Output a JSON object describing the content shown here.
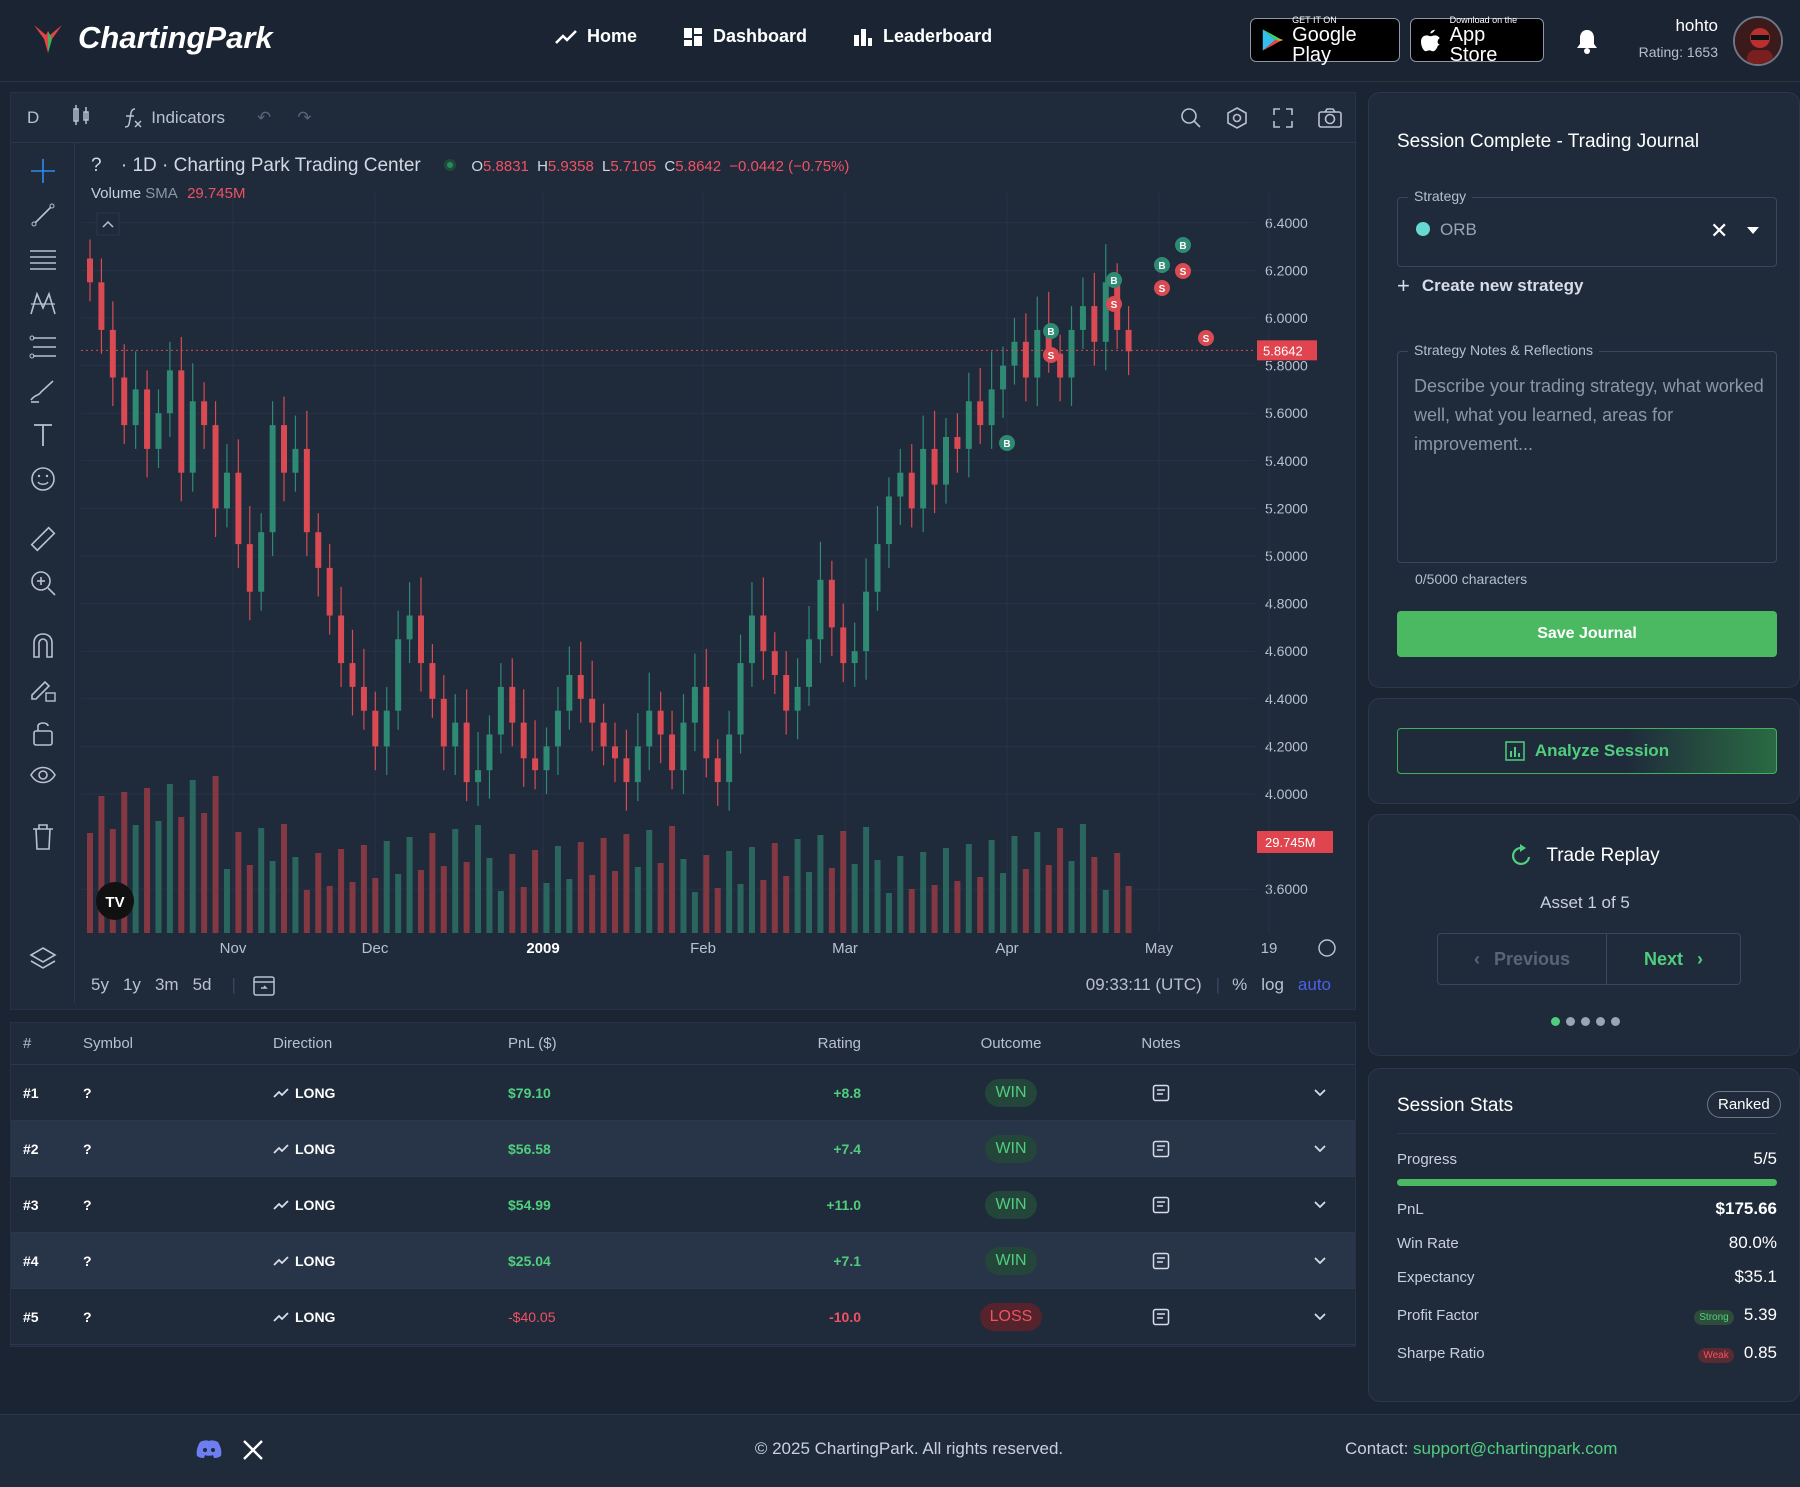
{
  "header": {
    "brand": "ChartingPark",
    "nav": [
      {
        "label": "Home",
        "icon": "trend-icon"
      },
      {
        "label": "Dashboard",
        "icon": "dashboard-icon"
      },
      {
        "label": "Leaderboard",
        "icon": "bar-chart-icon"
      }
    ],
    "google_play": {
      "small": "GET IT ON",
      "big": "Google Play"
    },
    "app_store": {
      "small": "Download on the",
      "big": "App Store"
    },
    "user": {
      "name": "hohto",
      "rating": "Rating: 1653"
    }
  },
  "chart_toolbar": {
    "interval": "D",
    "indicators_label": "Indicators"
  },
  "chart_legend": {
    "symbol": "?",
    "title": "· 1D · Charting Park Trading Center",
    "open_label": "O",
    "open": "5.8831",
    "high_label": "H",
    "high": "5.9358",
    "low_label": "L",
    "low": "5.7105",
    "close_label": "C",
    "close": "5.8642",
    "change": "−0.0442 (−0.75%)",
    "volume_label": "Volume",
    "volume_sma_label": "SMA",
    "volume_value": "29.745M"
  },
  "chart_data": {
    "type": "candlestick",
    "y_axis_ticks": [
      "6.4000",
      "6.2000",
      "6.0000",
      "5.8000",
      "5.6000",
      "5.4000",
      "5.2000",
      "5.0000",
      "4.8000",
      "4.6000",
      "4.4000",
      "4.2000",
      "4.0000",
      "3.6000"
    ],
    "x_axis_ticks": [
      "Nov",
      "Dec",
      "2009",
      "Feb",
      "Mar",
      "Apr",
      "May",
      "19"
    ],
    "ylim": [
      3.5,
      6.5
    ],
    "last_price_label": "5.8642",
    "volume_label": "29.745M",
    "markers": [
      "B",
      "S",
      "B",
      "S",
      "B",
      "S",
      "B",
      "S",
      "S"
    ],
    "closes": [
      6.15,
      5.95,
      5.75,
      5.55,
      5.7,
      5.45,
      5.6,
      5.78,
      5.35,
      5.65,
      5.55,
      5.2,
      5.35,
      5.05,
      4.85,
      5.1,
      5.55,
      5.35,
      5.45,
      5.1,
      4.95,
      4.75,
      4.55,
      4.45,
      4.35,
      4.2,
      4.35,
      4.65,
      4.75,
      4.55,
      4.4,
      4.2,
      4.3,
      4.05,
      4.1,
      4.25,
      4.45,
      4.3,
      4.15,
      4.1,
      4.2,
      4.35,
      4.5,
      4.4,
      4.3,
      4.2,
      4.15,
      4.05,
      4.2,
      4.35,
      4.25,
      4.1,
      4.3,
      4.45,
      4.15,
      4.05,
      4.25,
      4.55,
      4.75,
      4.6,
      4.5,
      4.35,
      4.45,
      4.65,
      4.9,
      4.7,
      4.55,
      4.6,
      4.85,
      5.05,
      5.25,
      5.35,
      5.2,
      5.45,
      5.3,
      5.5,
      5.45,
      5.65,
      5.55,
      5.7,
      5.8,
      5.9,
      5.75,
      5.95,
      5.85,
      5.75,
      5.95,
      6.05,
      5.9,
      6.15,
      5.95,
      5.86
    ]
  },
  "chart_bottom": {
    "ranges": [
      "5y",
      "1y",
      "3m",
      "5d"
    ],
    "time": "09:33:11 (UTC)",
    "pct": "%",
    "log": "log",
    "auto": "auto"
  },
  "table": {
    "headers": [
      "#",
      "Symbol",
      "Direction",
      "PnL ($)",
      "Rating",
      "Outcome",
      "Notes"
    ],
    "rows": [
      {
        "num": "#1",
        "symbol": "?",
        "direction": "LONG",
        "pnl": "$79.10",
        "rating": "+8.8",
        "outcome": "WIN"
      },
      {
        "num": "#2",
        "symbol": "?",
        "direction": "LONG",
        "pnl": "$56.58",
        "rating": "+7.4",
        "outcome": "WIN"
      },
      {
        "num": "#3",
        "symbol": "?",
        "direction": "LONG",
        "pnl": "$54.99",
        "rating": "+11.0",
        "outcome": "WIN"
      },
      {
        "num": "#4",
        "symbol": "?",
        "direction": "LONG",
        "pnl": "$25.04",
        "rating": "+7.1",
        "outcome": "WIN"
      },
      {
        "num": "#5",
        "symbol": "?",
        "direction": "LONG",
        "pnl": "-$40.05",
        "rating": "-10.0",
        "outcome": "LOSS"
      }
    ]
  },
  "journal": {
    "title": "Session Complete - Trading Journal",
    "strategy_label": "Strategy",
    "strategy_value": "ORB",
    "create_label": "Create new strategy",
    "notes_label": "Strategy Notes & Reflections",
    "notes_placeholder": "Describe your trading strategy, what worked well, what you learned, areas for improvement...",
    "char_count": "0/5000 characters",
    "save_label": "Save Journal"
  },
  "analyze": {
    "label": "Analyze Session"
  },
  "replay": {
    "title": "Trade Replay",
    "asset": "Asset 1 of 5",
    "prev": "Previous",
    "next": "Next"
  },
  "stats": {
    "title": "Session Stats",
    "badge": "Ranked",
    "progress_label": "Progress",
    "progress_value": "5/5",
    "progress_fraction": 1.0,
    "pnl_label": "PnL",
    "pnl_value": "$175.66",
    "winrate_label": "Win Rate",
    "winrate_value": "80.0%",
    "expectancy_label": "Expectancy",
    "expectancy_value": "$35.1",
    "pf_label": "Profit Factor",
    "pf_tag": "Strong",
    "pf_value": "5.39",
    "sharpe_label": "Sharpe Ratio",
    "sharpe_tag": "Weak",
    "sharpe_value": "0.85"
  },
  "footer": {
    "copyright": "© 2025 ChartingPark. All rights reserved.",
    "contact_label": "Contact:",
    "contact_email": "support@chartingpark.com"
  }
}
